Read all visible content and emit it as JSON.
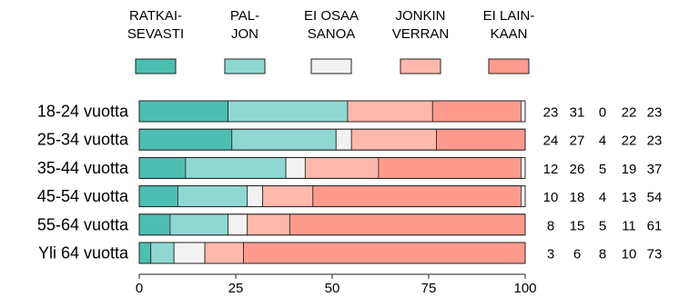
{
  "chart_data": {
    "type": "bar",
    "orientation": "horizontal",
    "stacked": true,
    "categories": [
      "18-24 vuotta",
      "25-34 vuotta",
      "35-44 vuotta",
      "45-54 vuotta",
      "55-64 vuotta",
      "Yli 64 vuotta"
    ],
    "series": [
      {
        "name": "RATKAI-SEVASTI",
        "legend_lines": [
          "RATKAI-",
          "SEVASTI"
        ],
        "color": "#4dbfb2",
        "values": [
          23,
          24,
          12,
          10,
          8,
          3
        ]
      },
      {
        "name": "PAL-JON",
        "legend_lines": [
          "PAL-",
          "JON"
        ],
        "color": "#8fd8d2",
        "values": [
          31,
          27,
          26,
          18,
          15,
          6
        ]
      },
      {
        "name": "EI OSAA SANOA",
        "legend_lines": [
          "EI OSAA",
          "SANOA"
        ],
        "color": "#f2f2f2",
        "values": [
          0,
          4,
          5,
          4,
          5,
          8
        ]
      },
      {
        "name": "JONKIN VERRAN",
        "legend_lines": [
          "JONKIN",
          "VERRAN"
        ],
        "color": "#ffb8ac",
        "values": [
          22,
          22,
          19,
          13,
          11,
          10
        ]
      },
      {
        "name": "EI LAIN-KAAN",
        "legend_lines": [
          "EI LAIN-",
          "KAAN"
        ],
        "color": "#ff9a8e",
        "values": [
          23,
          23,
          37,
          54,
          61,
          73
        ]
      }
    ],
    "xlim": [
      0,
      100
    ],
    "xticks": [
      0,
      25,
      50,
      75,
      100
    ],
    "legend_position": "top",
    "grid": false,
    "title": "",
    "xlabel": "",
    "ylabel": ""
  }
}
